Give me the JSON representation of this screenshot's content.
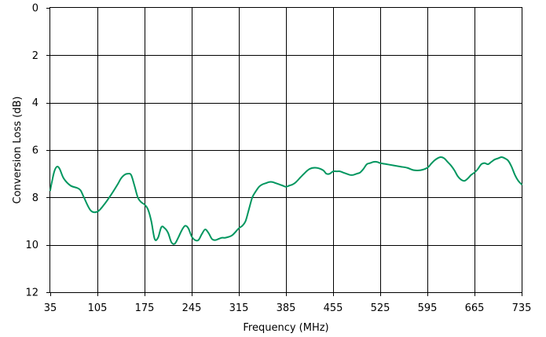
{
  "chart_data": {
    "type": "line",
    "title": "",
    "xlabel": "Frequency (MHz)",
    "ylabel": "Conversion Loss (dB)",
    "xlim": [
      35,
      735
    ],
    "ylim": [
      0,
      12
    ],
    "y_inverted": true,
    "grid": true,
    "x_ticks": [
      "35",
      "105",
      "175",
      "245",
      "315",
      "385",
      "455",
      "525",
      "595",
      "665",
      "735"
    ],
    "y_ticks": [
      "0",
      "2",
      "4",
      "6",
      "8",
      "10",
      "12"
    ],
    "x_tick_values": [
      35,
      105,
      175,
      245,
      315,
      385,
      455,
      525,
      595,
      665,
      735
    ],
    "y_tick_values": [
      0,
      2,
      4,
      6,
      8,
      10,
      12
    ],
    "series": [
      {
        "color": "#00965f",
        "x": [
          35,
          37,
          41,
          45,
          49,
          55,
          65,
          75,
          80,
          85,
          95,
          105,
          115,
          125,
          135,
          140,
          145,
          150,
          155,
          160,
          165,
          170,
          175,
          180,
          185,
          190,
          195,
          200,
          205,
          210,
          215,
          220,
          225,
          230,
          235,
          240,
          245,
          250,
          255,
          260,
          265,
          270,
          275,
          280,
          285,
          290,
          295,
          305,
          315,
          320,
          325,
          330,
          335,
          340,
          345,
          350,
          355,
          360,
          365,
          370,
          375,
          380,
          385,
          390,
          395,
          400,
          410,
          420,
          430,
          440,
          445,
          450,
          455,
          460,
          465,
          470,
          475,
          480,
          485,
          490,
          495,
          500,
          505,
          510,
          515,
          520,
          525,
          535,
          545,
          555,
          565,
          575,
          585,
          595,
          600,
          605,
          610,
          615,
          620,
          625,
          630,
          635,
          640,
          645,
          650,
          655,
          660,
          665,
          670,
          675,
          680,
          685,
          690,
          695,
          700,
          705,
          710,
          715,
          720,
          725,
          730,
          735
        ],
        "y": [
          7.7,
          7.4,
          6.9,
          6.7,
          6.8,
          7.2,
          7.5,
          7.6,
          7.7,
          8.0,
          8.55,
          8.6,
          8.3,
          7.9,
          7.45,
          7.2,
          7.05,
          7.0,
          7.05,
          7.5,
          8.0,
          8.2,
          8.3,
          8.5,
          9.0,
          9.75,
          9.7,
          9.25,
          9.3,
          9.5,
          9.9,
          9.95,
          9.7,
          9.4,
          9.2,
          9.3,
          9.65,
          9.8,
          9.8,
          9.55,
          9.35,
          9.5,
          9.75,
          9.8,
          9.75,
          9.7,
          9.7,
          9.6,
          9.3,
          9.2,
          9.0,
          8.5,
          8.0,
          7.75,
          7.55,
          7.45,
          7.4,
          7.35,
          7.35,
          7.4,
          7.45,
          7.5,
          7.55,
          7.5,
          7.45,
          7.35,
          7.05,
          6.8,
          6.75,
          6.85,
          7.0,
          7.0,
          6.9,
          6.9,
          6.9,
          6.95,
          7.0,
          7.05,
          7.05,
          7.0,
          6.95,
          6.8,
          6.6,
          6.55,
          6.5,
          6.5,
          6.55,
          6.6,
          6.65,
          6.7,
          6.75,
          6.85,
          6.85,
          6.75,
          6.6,
          6.45,
          6.35,
          6.3,
          6.35,
          6.5,
          6.65,
          6.85,
          7.1,
          7.25,
          7.3,
          7.2,
          7.05,
          6.95,
          6.8,
          6.6,
          6.55,
          6.6,
          6.5,
          6.4,
          6.35,
          6.3,
          6.35,
          6.45,
          6.7,
          7.05,
          7.3,
          7.45
        ]
      }
    ]
  }
}
